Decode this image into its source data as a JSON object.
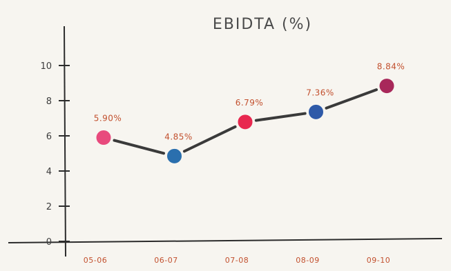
{
  "chart_data": {
    "type": "line",
    "title": "EBIDTA (%)",
    "categories": [
      "05-06",
      "06-07",
      "07-08",
      "08-09",
      "09-10"
    ],
    "values": [
      5.9,
      4.85,
      6.79,
      7.36,
      8.84
    ],
    "data_labels": [
      "5.90%",
      "4.85%",
      "6.79%",
      "7.36%",
      "8.84%"
    ],
    "point_colors": [
      "#e84a7d",
      "#2a6fae",
      "#e8284f",
      "#2f5aa8",
      "#a8285a"
    ],
    "ylim": [
      0,
      10
    ],
    "yticks": [
      0,
      2,
      4,
      6,
      8,
      10
    ],
    "grid": false,
    "legend": "none"
  }
}
